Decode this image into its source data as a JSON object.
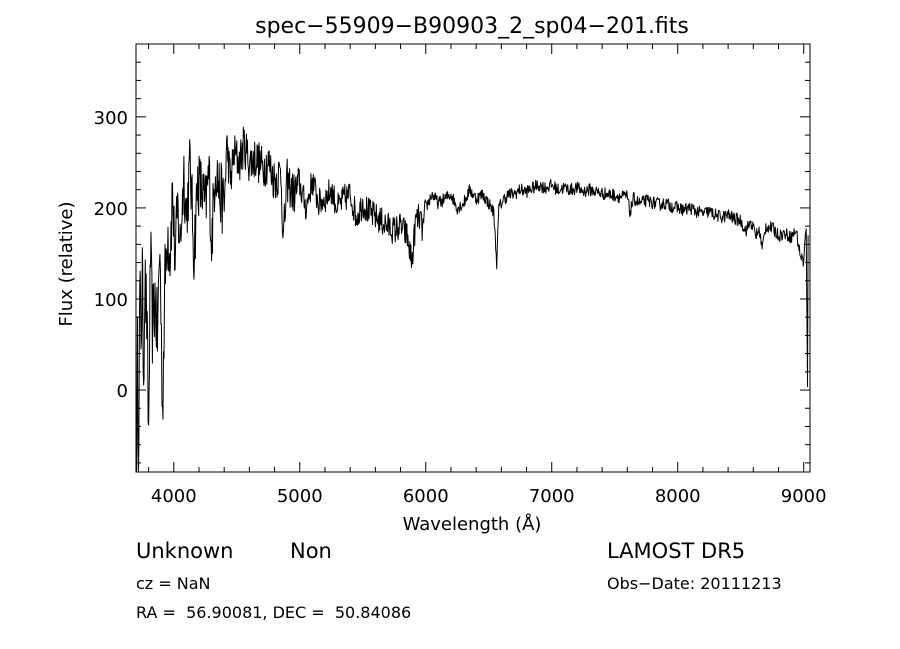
{
  "chart_data": {
    "type": "line",
    "title": "spec−55909−B90903_2_sp04−201.fits",
    "xlabel": "Wavelength (Å)",
    "ylabel": "Flux (relative)",
    "xlim": [
      3700,
      9050
    ],
    "ylim": [
      -90,
      380
    ],
    "xticks": [
      4000,
      5000,
      6000,
      7000,
      8000,
      9000
    ],
    "yticks": [
      0,
      100,
      200,
      300
    ],
    "grid": false,
    "color": "#000000",
    "anchors": [
      [
        3705,
        -90
      ],
      [
        3712,
        40
      ],
      [
        3720,
        -80
      ],
      [
        3730,
        110
      ],
      [
        3740,
        60
      ],
      [
        3750,
        130
      ],
      [
        3760,
        20
      ],
      [
        3770,
        120
      ],
      [
        3785,
        80
      ],
      [
        3800,
        -50
      ],
      [
        3815,
        150
      ],
      [
        3830,
        70
      ],
      [
        3850,
        100
      ],
      [
        3870,
        60
      ],
      [
        3890,
        160
      ],
      [
        3910,
        -20
      ],
      [
        3930,
        120
      ],
      [
        3950,
        180
      ],
      [
        3970,
        150
      ],
      [
        3990,
        220
      ],
      [
        4010,
        140
      ],
      [
        4030,
        200
      ],
      [
        4050,
        160
      ],
      [
        4080,
        240
      ],
      [
        4100,
        190
      ],
      [
        4130,
        250
      ],
      [
        4160,
        150
      ],
      [
        4190,
        230
      ],
      [
        4220,
        220
      ],
      [
        4250,
        200
      ],
      [
        4280,
        240
      ],
      [
        4300,
        160
      ],
      [
        4330,
        250
      ],
      [
        4360,
        220
      ],
      [
        4400,
        200
      ],
      [
        4420,
        270
      ],
      [
        4450,
        230
      ],
      [
        4480,
        260
      ],
      [
        4520,
        250
      ],
      [
        4560,
        270
      ],
      [
        4600,
        250
      ],
      [
        4650,
        255
      ],
      [
        4700,
        245
      ],
      [
        4750,
        250
      ],
      [
        4800,
        230
      ],
      [
        4850,
        240
      ],
      [
        4870,
        165
      ],
      [
        4900,
        230
      ],
      [
        4950,
        215
      ],
      [
        5000,
        225
      ],
      [
        5050,
        200
      ],
      [
        5100,
        230
      ],
      [
        5150,
        205
      ],
      [
        5200,
        210
      ],
      [
        5250,
        220
      ],
      [
        5300,
        200
      ],
      [
        5350,
        210
      ],
      [
        5400,
        215
      ],
      [
        5450,
        190
      ],
      [
        5500,
        205
      ],
      [
        5550,
        195
      ],
      [
        5600,
        190
      ],
      [
        5650,
        185
      ],
      [
        5700,
        180
      ],
      [
        5750,
        175
      ],
      [
        5800,
        180
      ],
      [
        5850,
        170
      ],
      [
        5890,
        140
      ],
      [
        5920,
        185
      ],
      [
        5950,
        190
      ],
      [
        5975,
        175
      ],
      [
        6000,
        200
      ],
      [
        6050,
        215
      ],
      [
        6100,
        205
      ],
      [
        6150,
        210
      ],
      [
        6200,
        215
      ],
      [
        6250,
        200
      ],
      [
        6300,
        205
      ],
      [
        6350,
        220
      ],
      [
        6400,
        210
      ],
      [
        6450,
        215
      ],
      [
        6500,
        205
      ],
      [
        6540,
        195
      ],
      [
        6563,
        140
      ],
      [
        6580,
        200
      ],
      [
        6620,
        210
      ],
      [
        6660,
        215
      ],
      [
        6700,
        215
      ],
      [
        6750,
        220
      ],
      [
        6800,
        218
      ],
      [
        6850,
        222
      ],
      [
        6900,
        225
      ],
      [
        6950,
        222
      ],
      [
        7000,
        225
      ],
      [
        7050,
        220
      ],
      [
        7100,
        222
      ],
      [
        7150,
        220
      ],
      [
        7200,
        222
      ],
      [
        7250,
        218
      ],
      [
        7300,
        220
      ],
      [
        7350,
        218
      ],
      [
        7400,
        216
      ],
      [
        7450,
        215
      ],
      [
        7500,
        214
      ],
      [
        7550,
        212
      ],
      [
        7600,
        213
      ],
      [
        7620,
        195
      ],
      [
        7650,
        210
      ],
      [
        7700,
        205
      ],
      [
        7750,
        208
      ],
      [
        7800,
        206
      ],
      [
        7850,
        204
      ],
      [
        7900,
        205
      ],
      [
        7950,
        202
      ],
      [
        8000,
        200
      ],
      [
        8050,
        198
      ],
      [
        8100,
        200
      ],
      [
        8150,
        196
      ],
      [
        8200,
        194
      ],
      [
        8250,
        196
      ],
      [
        8300,
        192
      ],
      [
        8350,
        190
      ],
      [
        8400,
        192
      ],
      [
        8450,
        188
      ],
      [
        8500,
        186
      ],
      [
        8540,
        175
      ],
      [
        8580,
        185
      ],
      [
        8620,
        170
      ],
      [
        8650,
        175
      ],
      [
        8670,
        155
      ],
      [
        8700,
        180
      ],
      [
        8750,
        178
      ],
      [
        8800,
        170
      ],
      [
        8850,
        172
      ],
      [
        8900,
        168
      ],
      [
        8940,
        175
      ],
      [
        8970,
        150
      ],
      [
        9000,
        140
      ],
      [
        9010,
        165
      ],
      [
        9020,
        175
      ],
      [
        9030,
        0
      ],
      [
        9035,
        170
      ]
    ]
  },
  "info": {
    "object_class": "Unknown",
    "object_subclass": "Non",
    "survey": "LAMOST DR5",
    "redshift": "cz = NaN",
    "obs_date": "Obs−Date: 20111213",
    "coords": "RA =  56.90081, DEC =  50.84086"
  }
}
